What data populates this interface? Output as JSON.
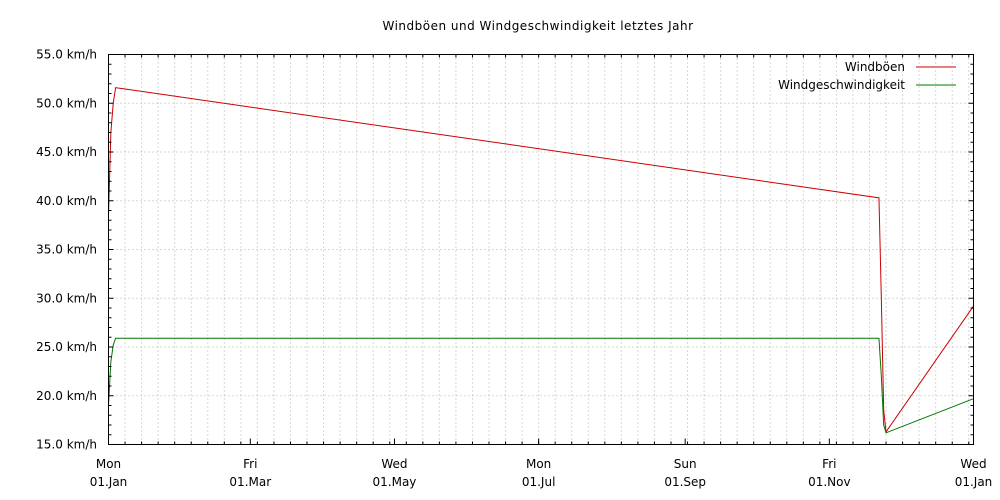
{
  "chart_data": {
    "type": "line",
    "title": "Windböen und Windgeschwindigkeit letztes Jahr",
    "xlabel": "",
    "ylabel": "",
    "ylim": [
      15,
      55
    ],
    "xlim": [
      "2024-01-01",
      "2025-01-01"
    ],
    "y_ticks": [
      {
        "value": 15,
        "label": "15.0 km/h"
      },
      {
        "value": 20,
        "label": "20.0 km/h"
      },
      {
        "value": 25,
        "label": "25.0 km/h"
      },
      {
        "value": 30,
        "label": "30.0 km/h"
      },
      {
        "value": 35,
        "label": "35.0 km/h"
      },
      {
        "value": 40,
        "label": "40.0 km/h"
      },
      {
        "value": 45,
        "label": "45.0 km/h"
      },
      {
        "value": 50,
        "label": "50.0 km/h"
      },
      {
        "value": 55,
        "label": "55.0 km/h"
      }
    ],
    "x_ticks": [
      {
        "date": "2024-01-01",
        "weekday": "Mon",
        "label": "01.Jan"
      },
      {
        "date": "2024-03-01",
        "weekday": "Fri",
        "label": "01.Mar"
      },
      {
        "date": "2024-05-01",
        "weekday": "Wed",
        "label": "01.May"
      },
      {
        "date": "2024-07-01",
        "weekday": "Mon",
        "label": "01.Jul"
      },
      {
        "date": "2024-09-01",
        "weekday": "Sun",
        "label": "01.Sep"
      },
      {
        "date": "2024-11-01",
        "weekday": "Fri",
        "label": "01.Nov"
      },
      {
        "date": "2025-01-01",
        "weekday": "Wed",
        "label": "01.Jan"
      }
    ],
    "grid": true,
    "legend_position": "top-right",
    "series": [
      {
        "name": "Windböen",
        "color": "#cc0000",
        "points": [
          {
            "x": "2024-01-01",
            "y": 38.5
          },
          {
            "x": "2024-01-02",
            "y": 47.0
          },
          {
            "x": "2024-01-03",
            "y": 50.0
          },
          {
            "x": "2024-01-04",
            "y": 51.6
          },
          {
            "x": "2024-11-22",
            "y": 40.3
          },
          {
            "x": "2024-11-23",
            "y": 30.0
          },
          {
            "x": "2024-11-24",
            "y": 18.5
          },
          {
            "x": "2024-11-25",
            "y": 16.3
          },
          {
            "x": "2025-01-01",
            "y": 29.2
          }
        ]
      },
      {
        "name": "Windgeschwindigkeit",
        "color": "#007700",
        "points": [
          {
            "x": "2024-01-01",
            "y": 19.0
          },
          {
            "x": "2024-01-02",
            "y": 23.5
          },
          {
            "x": "2024-01-03",
            "y": 25.2
          },
          {
            "x": "2024-01-04",
            "y": 25.9
          },
          {
            "x": "2024-11-22",
            "y": 25.9
          },
          {
            "x": "2024-11-23",
            "y": 22.0
          },
          {
            "x": "2024-11-24",
            "y": 17.0
          },
          {
            "x": "2024-11-25",
            "y": 16.2
          },
          {
            "x": "2025-01-01",
            "y": 19.7
          }
        ]
      }
    ]
  }
}
